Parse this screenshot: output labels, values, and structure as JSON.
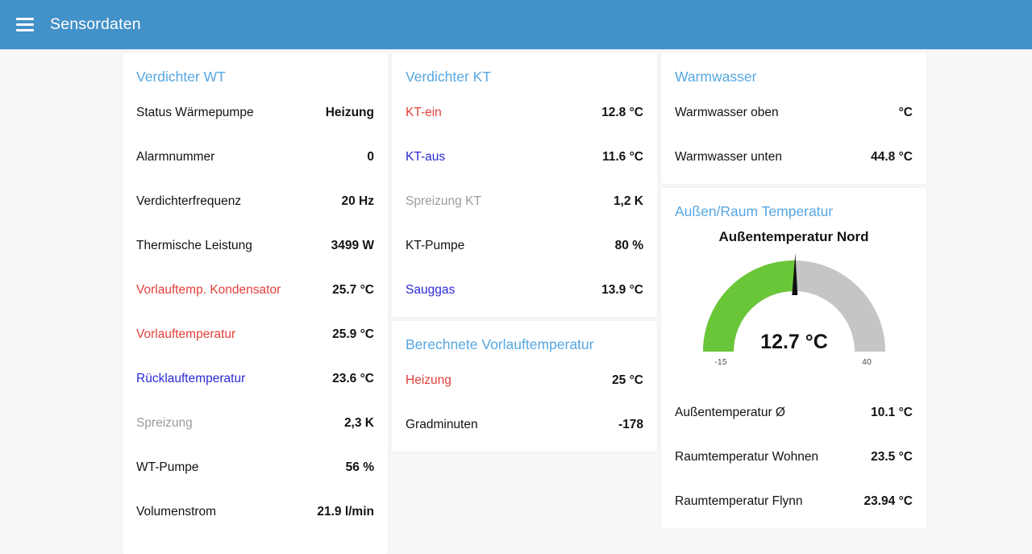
{
  "header": {
    "title": "Sensordaten"
  },
  "colors": {
    "header_bg": "#4291c8",
    "page_bg": "#f7f7f7",
    "card_bg": "#ffffff",
    "title_accent": "#56a7e2",
    "label_red": "#e2403c",
    "label_blue": "#2b2ad3",
    "label_gray": "#9b9b9b",
    "text_dark": "#131313",
    "gauge_green": "#69c638",
    "gauge_gray": "#c5c5c5",
    "gauge_tick": "#4a4a4a"
  },
  "cards": {
    "verdichter_wt": {
      "title": "Verdichter WT",
      "rows": [
        {
          "label": "Status Wärmepumpe",
          "value": "Heizung",
          "color": "default"
        },
        {
          "label": "Alarmnummer",
          "value": "0",
          "color": "default"
        },
        {
          "label": "Verdichterfrequenz",
          "value": "20 Hz",
          "color": "default"
        },
        {
          "label": "Thermische Leistung",
          "value": "3499 W",
          "color": "default"
        },
        {
          "label": "Vorlauftemp. Kondensator",
          "value": "25.7 °C",
          "color": "red"
        },
        {
          "label": "Vorlauftemperatur",
          "value": "25.9 °C",
          "color": "red"
        },
        {
          "label": "Rücklauftemperatur",
          "value": "23.6 °C",
          "color": "blue"
        },
        {
          "label": "Spreizung",
          "value": "2,3 K",
          "color": "gray"
        },
        {
          "label": "WT-Pumpe",
          "value": "56 %",
          "color": "default"
        },
        {
          "label": "Volumenstrom",
          "value": "21.9 l/min",
          "color": "default"
        }
      ]
    },
    "verdichter_kt": {
      "title": "Verdichter KT",
      "rows": [
        {
          "label": "KT-ein",
          "value": "12.8 °C",
          "color": "red"
        },
        {
          "label": "KT-aus",
          "value": "11.6 °C",
          "color": "blue"
        },
        {
          "label": "Spreizung KT",
          "value": "1,2 K",
          "color": "gray"
        },
        {
          "label": "KT-Pumpe",
          "value": "80 %",
          "color": "default"
        },
        {
          "label": "Sauggas",
          "value": "13.9 °C",
          "color": "blue"
        }
      ]
    },
    "berechnete_vorlauftemperatur": {
      "title": "Berechnete Vorlauftemperatur",
      "rows": [
        {
          "label": "Heizung",
          "value": "25 °C",
          "color": "red"
        },
        {
          "label": "Gradminuten",
          "value": "-178",
          "color": "default"
        }
      ]
    },
    "warmwasser": {
      "title": "Warmwasser",
      "rows": [
        {
          "label": "Warmwasser oben",
          "value": "°C",
          "color": "default"
        },
        {
          "label": "Warmwasser unten",
          "value": "44.8 °C",
          "color": "default"
        }
      ]
    },
    "aussen_raum": {
      "title": "Außen/Raum Temperatur",
      "gauge": {
        "title": "Außentemperatur Nord",
        "value_label": "12.7 °C",
        "value_num": 12.7,
        "min": -15,
        "max": 40,
        "type": "gauge"
      },
      "rows": [
        {
          "label": "Außentemperatur Ø",
          "value": "10.1 °C",
          "color": "default"
        },
        {
          "label": "Raumtemperatur Wohnen",
          "value": "23.5 °C",
          "color": "default"
        },
        {
          "label": "Raumtemperatur Flynn",
          "value": "23.94 °C",
          "color": "default"
        }
      ]
    }
  }
}
